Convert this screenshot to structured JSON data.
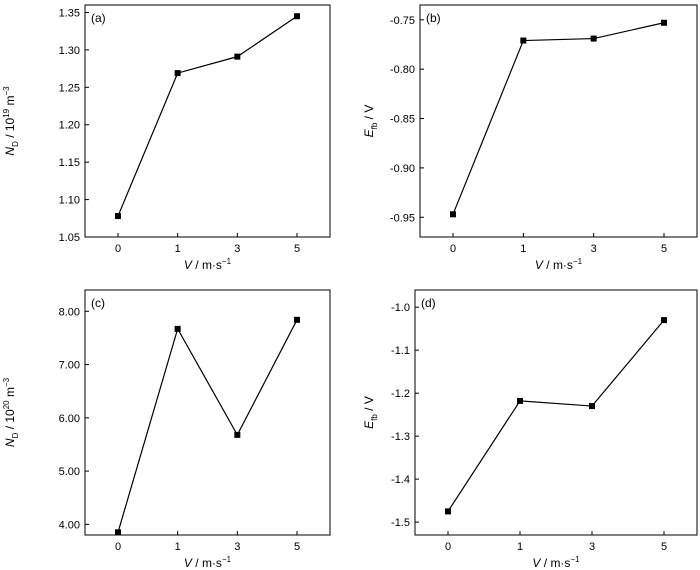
{
  "chart_data": [
    {
      "type": "line",
      "panel_label": "(a)",
      "categories": [
        "0",
        "1",
        "3",
        "5"
      ],
      "values": [
        1.078,
        1.269,
        1.291,
        1.345
      ],
      "ylim": [
        1.05,
        1.36
      ],
      "yticks": [
        "1.05",
        "1.10",
        "1.15",
        "1.20",
        "1.25",
        "1.30",
        "1.35"
      ],
      "ytick_values": [
        1.05,
        1.1,
        1.15,
        1.2,
        1.25,
        1.3,
        1.35
      ],
      "ylabel": {
        "main": "N",
        "sub": "D",
        "rest": " / 10",
        "sup": "19",
        "unit": " m",
        "unit_sup": "−3"
      },
      "xlabel": {
        "main": "V",
        "rest": " / m·s",
        "sup": "−1"
      },
      "marker": "square",
      "color": "#000000"
    },
    {
      "type": "line",
      "panel_label": "(b)",
      "categories": [
        "0",
        "1",
        "3",
        "5"
      ],
      "values": [
        -0.947,
        -0.771,
        -0.769,
        -0.753
      ],
      "ylim": [
        -0.97,
        -0.735
      ],
      "yticks": [
        "-0.95",
        "-0.90",
        "-0.85",
        "-0.80",
        "-0.75"
      ],
      "ytick_values": [
        -0.95,
        -0.9,
        -0.85,
        -0.8,
        -0.75
      ],
      "ylabel": {
        "main": "E",
        "sub": "fb",
        "rest": " / V"
      },
      "xlabel": {
        "main": "V",
        "rest": " / m·s",
        "sup": "−1"
      },
      "marker": "square",
      "color": "#000000"
    },
    {
      "type": "line",
      "panel_label": "(c)",
      "categories": [
        "0",
        "1",
        "3",
        "5"
      ],
      "values": [
        3.85,
        7.67,
        5.68,
        7.84
      ],
      "ylim": [
        3.8,
        8.4
      ],
      "yticks": [
        "4.00",
        "5.00",
        "6.00",
        "7.00",
        "8.00"
      ],
      "ytick_values": [
        4.0,
        5.0,
        6.0,
        7.0,
        8.0
      ],
      "ylabel": {
        "main": "N",
        "sub": "D",
        "rest": " / 10",
        "sup": "20",
        "unit": " m",
        "unit_sup": "−3"
      },
      "xlabel": {
        "main": "V",
        "rest": " / m·s",
        "sup": "−1"
      },
      "marker": "square",
      "color": "#000000"
    },
    {
      "type": "line",
      "panel_label": "(d)",
      "categories": [
        "0",
        "1",
        "3",
        "5"
      ],
      "values": [
        -1.475,
        -1.218,
        -1.23,
        -1.03
      ],
      "ylim": [
        -1.53,
        -0.96
      ],
      "yticks": [
        "-1.5",
        "-1.4",
        "-1.3",
        "-1.2",
        "-1.1",
        "-1.0"
      ],
      "ytick_values": [
        -1.5,
        -1.4,
        -1.3,
        -1.2,
        -1.1,
        -1.0
      ],
      "ylabel": {
        "main": "E",
        "sub": "fb",
        "rest": " / V"
      },
      "xlabel": {
        "main": "V",
        "rest": " / m·s",
        "sup": "−1"
      },
      "marker": "square",
      "color": "#000000"
    }
  ]
}
